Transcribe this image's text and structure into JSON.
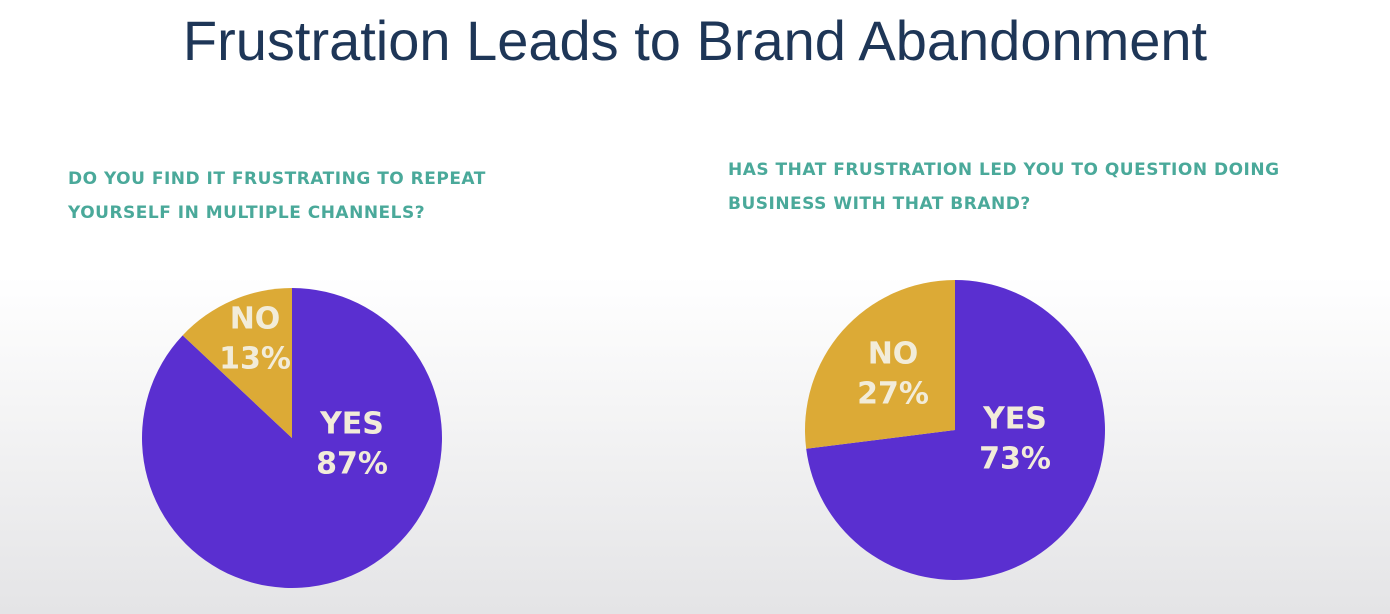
{
  "title": "Frustration Leads to Brand Abandonment",
  "chart_data": [
    {
      "type": "pie",
      "title": "DO YOU FIND IT FRUSTRATING TO REPEAT YOURSELF IN MULTIPLE CHANNELS?",
      "categories": [
        "YES",
        "NO"
      ],
      "values": [
        87,
        13
      ],
      "value_labels": [
        "87%",
        "13%"
      ],
      "colors": [
        "#5a2fd0",
        "#dcaa36"
      ]
    },
    {
      "type": "pie",
      "title": "HAS THAT FRUSTRATION LED YOU TO QUESTION DOING BUSINESS WITH THAT BRAND?",
      "categories": [
        "YES",
        "NO"
      ],
      "values": [
        73,
        27
      ],
      "value_labels": [
        "73%",
        "27%"
      ],
      "colors": [
        "#5a2fd0",
        "#dcaa36"
      ]
    }
  ]
}
